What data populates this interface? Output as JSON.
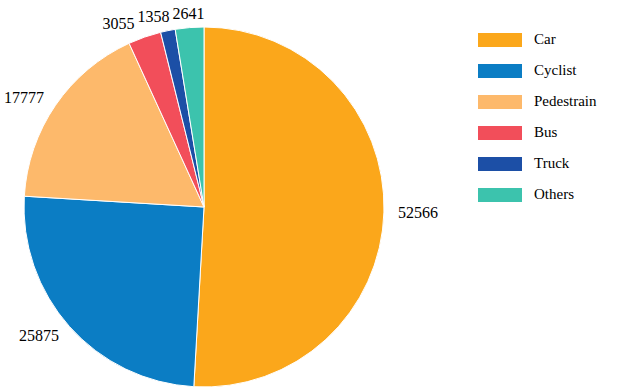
{
  "chart_data": {
    "type": "pie",
    "categories": [
      "Car",
      "Cyclist",
      "Pedestrain",
      "Bus",
      "Truck",
      "Others"
    ],
    "values": [
      52566,
      25875,
      17777,
      3055,
      1358,
      2641
    ],
    "colors": [
      "#fba71b",
      "#0b7dc4",
      "#fdb96b",
      "#f24e5a",
      "#1c4fa6",
      "#3cc3ad"
    ],
    "data_labels": true,
    "legend": "right"
  }
}
